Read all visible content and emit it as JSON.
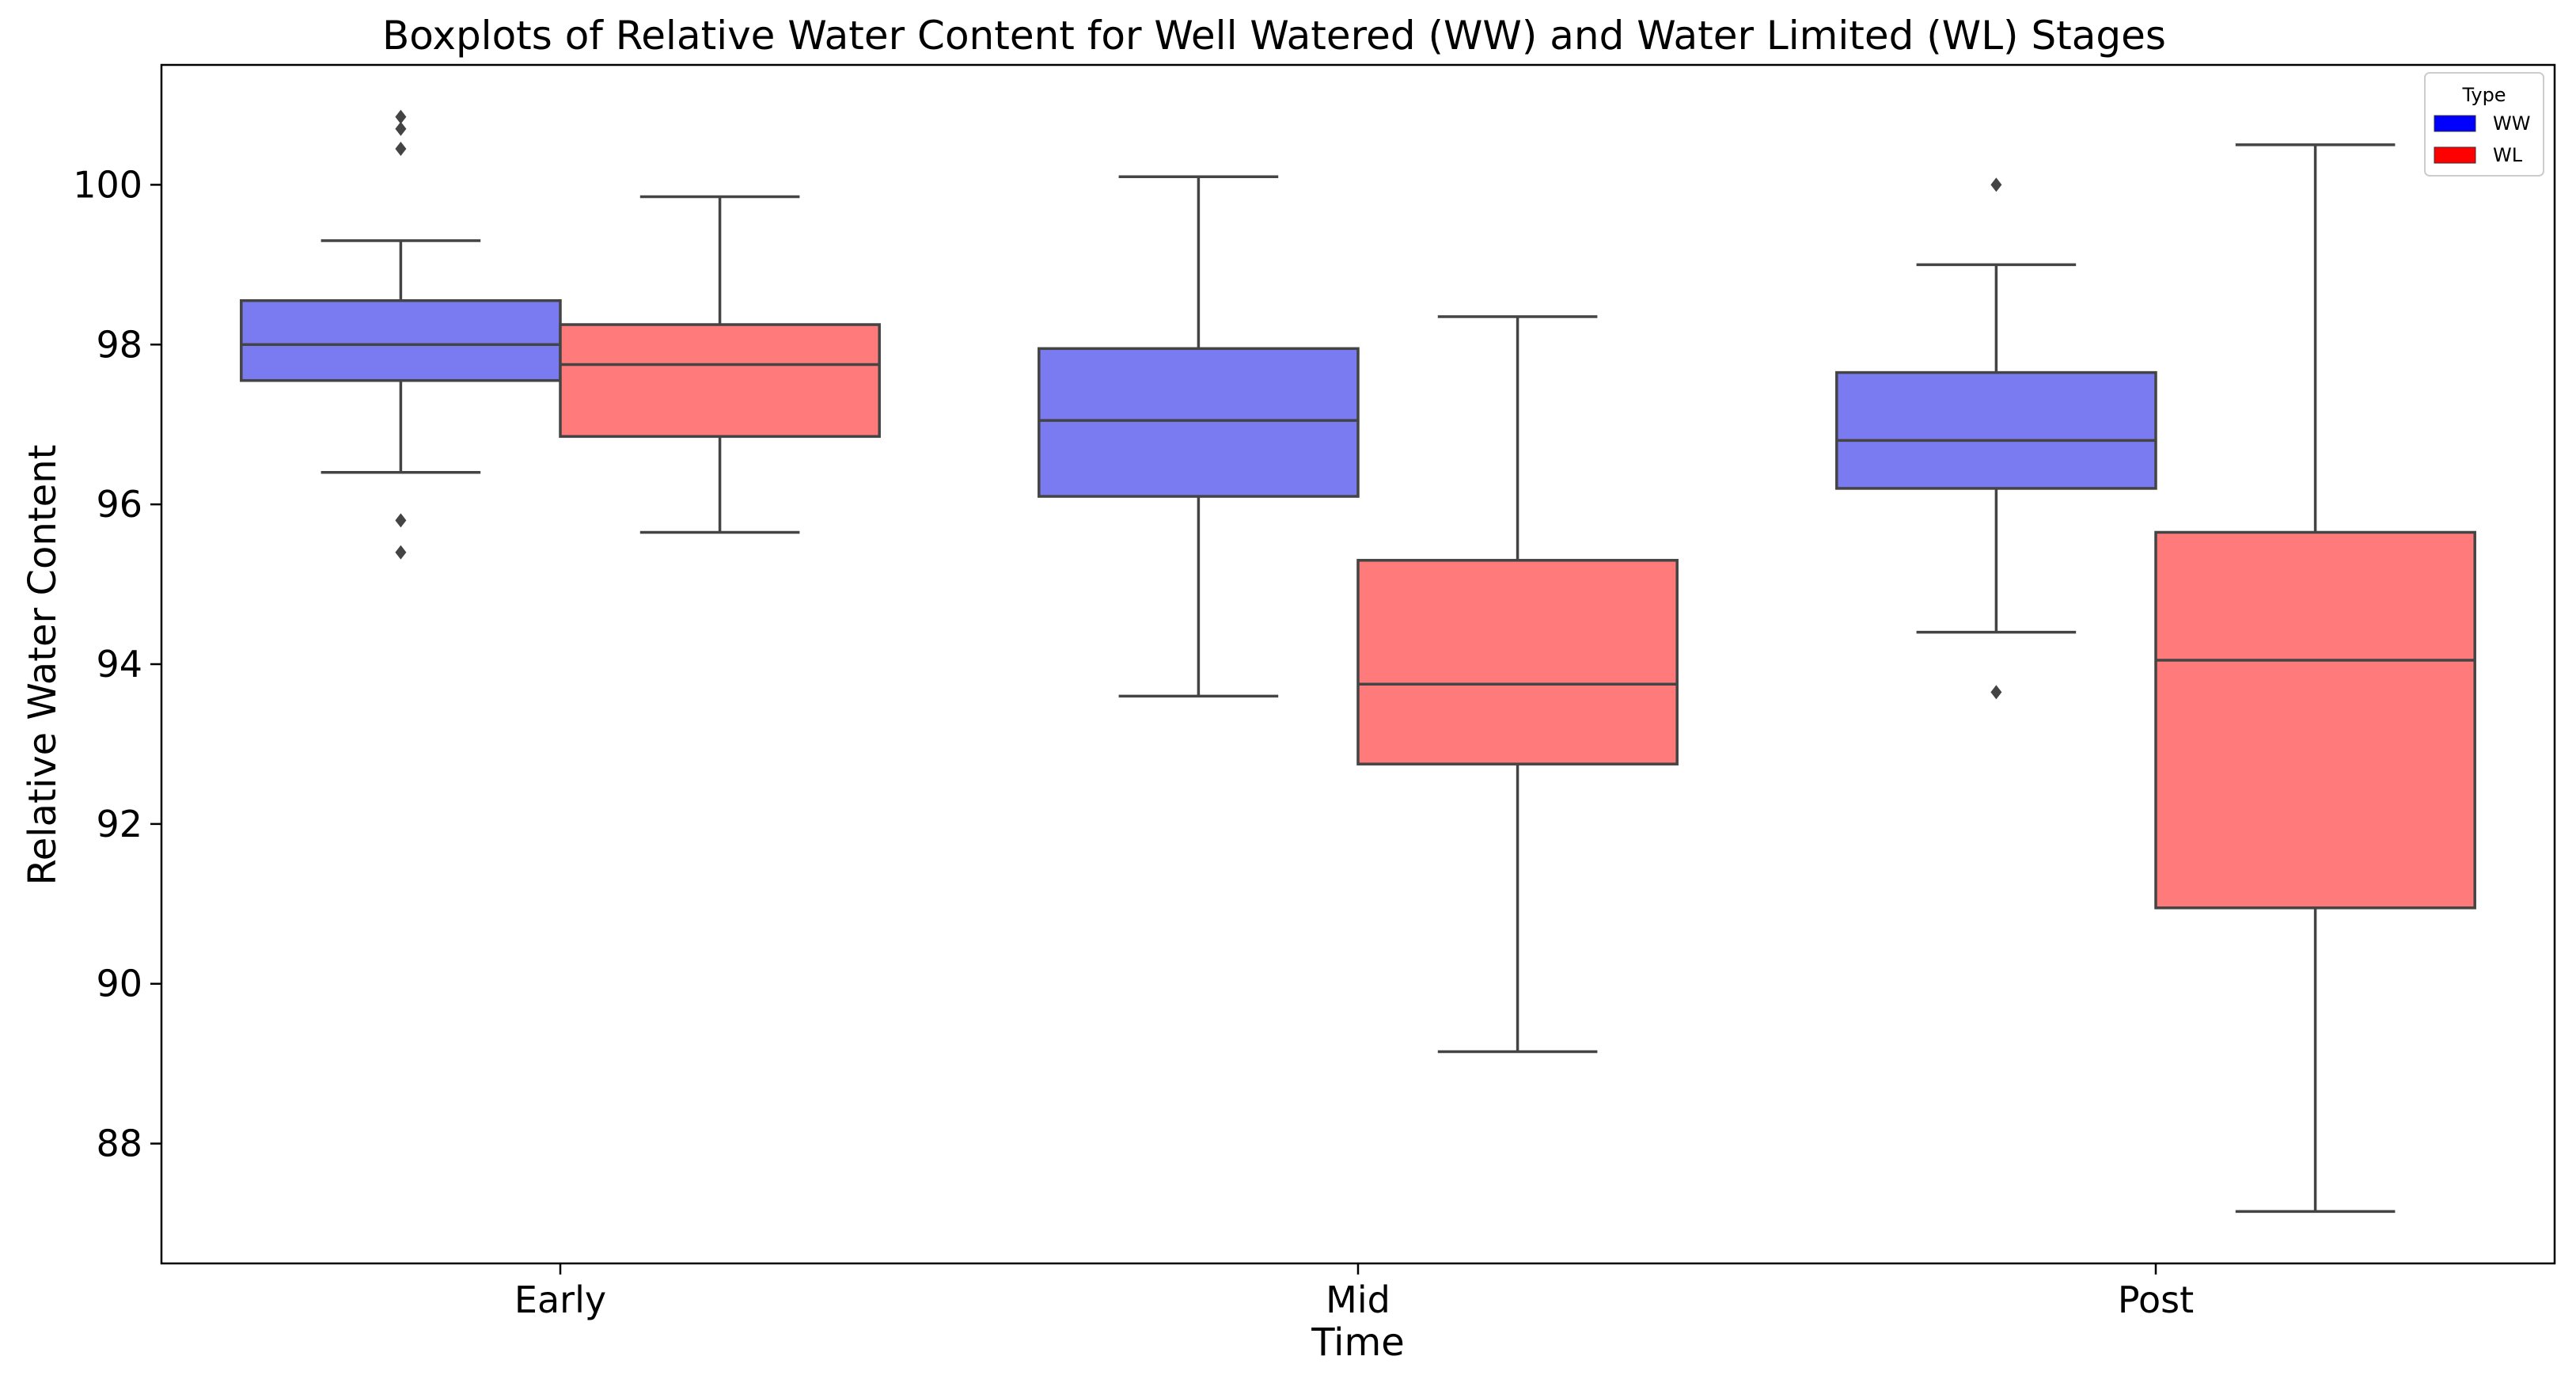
{
  "chart_data": {
    "type": "boxplot",
    "title": "Boxplots of Relative Water Content for Well Watered (WW) and Water Limited (WL) Stages",
    "xlabel": "Time",
    "ylabel": "Relative Water Content",
    "categories": [
      "Early",
      "Mid",
      "Post"
    ],
    "yticks": [
      88,
      90,
      92,
      94,
      96,
      98,
      100
    ],
    "ylim": [
      86.5,
      101.5
    ],
    "grid": false,
    "legend": {
      "title": "Type",
      "position": "top-right",
      "entries": [
        {
          "label": "WW",
          "color": "#0000ff"
        },
        {
          "label": "WL",
          "color": "#ff0000"
        }
      ]
    },
    "series": [
      {
        "name": "WW",
        "fill": "#7b7bf1",
        "boxes": [
          {
            "category": "Early",
            "whisker_low": 96.4,
            "q1": 97.55,
            "median": 98.0,
            "q3": 98.55,
            "whisker_high": 99.3,
            "outliers": [
              100.85,
              100.7,
              100.45,
              95.8,
              95.4
            ]
          },
          {
            "category": "Mid",
            "whisker_low": 93.6,
            "q1": 96.1,
            "median": 97.05,
            "q3": 97.95,
            "whisker_high": 100.1,
            "outliers": []
          },
          {
            "category": "Post",
            "whisker_low": 94.4,
            "q1": 96.2,
            "median": 96.8,
            "q3": 97.65,
            "whisker_high": 99.0,
            "outliers": [
              100.0,
              93.65
            ]
          }
        ]
      },
      {
        "name": "WL",
        "fill": "#ff7b7b",
        "boxes": [
          {
            "category": "Early",
            "whisker_low": 95.65,
            "q1": 96.85,
            "median": 97.75,
            "q3": 98.25,
            "whisker_high": 99.85,
            "outliers": []
          },
          {
            "category": "Mid",
            "whisker_low": 89.15,
            "q1": 92.75,
            "median": 93.75,
            "q3": 95.3,
            "whisker_high": 98.35,
            "outliers": []
          },
          {
            "category": "Post",
            "whisker_low": 87.15,
            "q1": 90.95,
            "median": 94.05,
            "q3": 95.65,
            "whisker_high": 100.5,
            "outliers": []
          }
        ]
      }
    ]
  }
}
